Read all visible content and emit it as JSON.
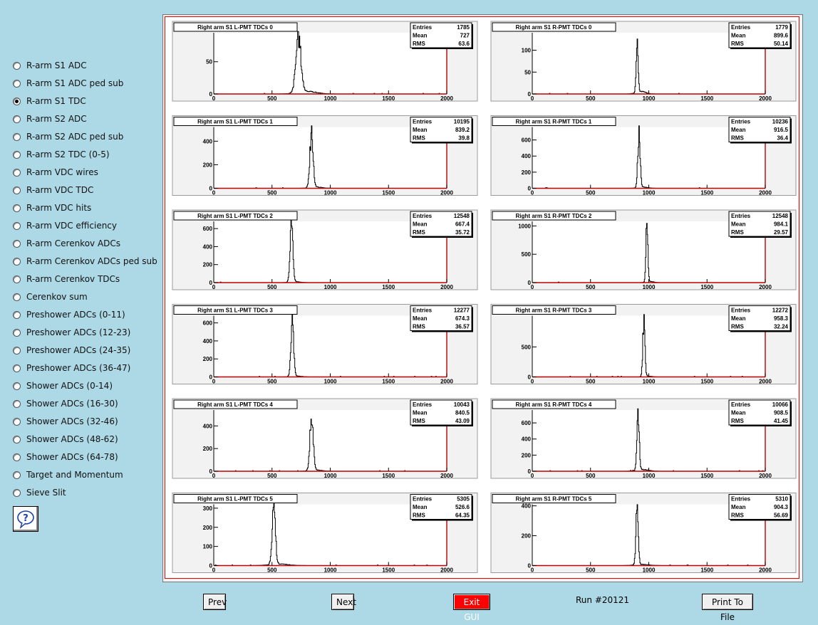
{
  "menu": {
    "selected": 2,
    "items": [
      "R-arm S1 ADC",
      "R-arm S1 ADC ped sub",
      "R-arm S1 TDC",
      "R-arm S2 ADC",
      "R-arm S2 ADC ped sub",
      "R-arm S2 TDC (0-5)",
      "R-arm VDC wires",
      "R-arm VDC TDC",
      "R-arm VDC hits",
      "R-arm VDC efficiency",
      "R-arm Cerenkov ADCs",
      "R-arm Cerenkov ADCs ped sub",
      "R-arm Cerenkov TDCs",
      "Cerenkov sum",
      "Preshower ADCs (0-11)",
      "Preshower ADCs (12-23)",
      "Preshower ADCs (24-35)",
      "Preshower ADCs (36-47)",
      "Shower ADCs (0-14)",
      "Shower ADCs (16-30)",
      "Shower ADCs (32-46)",
      "Shower ADCs (48-62)",
      "Shower ADCs (64-78)",
      "Target and Momentum",
      "Sieve Slit"
    ]
  },
  "help_icon": "question-mark-icon",
  "buttons": {
    "prev": "Prev",
    "next": "Next",
    "exit": "Exit GUI",
    "print": "Print To File"
  },
  "colors": {
    "background": "#add8e6",
    "frame_border": "#e00000",
    "exit_button": "#ff0000",
    "axis_red": "#c00000"
  },
  "run_label": "Run #20121",
  "chart_data": [
    {
      "type": "histogram",
      "title": "Right arm S1 L-PMT TDCs 0",
      "stats": {
        "Entries": "1785",
        "Mean": "727",
        "RMS": "63.6"
      },
      "xlim": [
        0,
        2000
      ],
      "ylim": [
        0,
        95
      ],
      "x_ticks": [
        0,
        500,
        1000,
        1500,
        2000
      ],
      "y_ticks": [
        0,
        50
      ],
      "peak": {
        "x": 727,
        "width": 22,
        "height": 86
      },
      "tail": {
        "x": 800,
        "width": 80,
        "height": 4
      }
    },
    {
      "type": "histogram",
      "title": "Right arm S1 R-PMT TDCs 0",
      "stats": {
        "Entries": "1779",
        "Mean": "899.6",
        "RMS": "50.14"
      },
      "xlim": [
        0,
        2000
      ],
      "ylim": [
        0,
        140
      ],
      "x_ticks": [
        0,
        500,
        1000,
        1500,
        2000
      ],
      "y_ticks": [
        0,
        50,
        100
      ],
      "peak": {
        "x": 900,
        "width": 8,
        "height": 120
      },
      "tail": {
        "x": 930,
        "width": 40,
        "height": 6
      }
    },
    {
      "type": "histogram",
      "title": "Right arm S1 L-PMT TDCs 1",
      "stats": {
        "Entries": "10195",
        "Mean": "839.2",
        "RMS": "39.8"
      },
      "xlim": [
        0,
        2000
      ],
      "ylim": [
        0,
        520
      ],
      "x_ticks": [
        0,
        500,
        1000,
        1500,
        2000
      ],
      "y_ticks": [
        0,
        200,
        400
      ],
      "peak": {
        "x": 839,
        "width": 14,
        "height": 460
      },
      "tail": {
        "x": 880,
        "width": 50,
        "height": 10
      }
    },
    {
      "type": "histogram",
      "title": "Right arm S1 R-PMT TDCs 1",
      "stats": {
        "Entries": "10236",
        "Mean": "916.5",
        "RMS": "36.4"
      },
      "xlim": [
        0,
        2000
      ],
      "ylim": [
        0,
        760
      ],
      "x_ticks": [
        0,
        500,
        1000,
        1500,
        2000
      ],
      "y_ticks": [
        0,
        200,
        400,
        600
      ],
      "peak": {
        "x": 916,
        "width": 10,
        "height": 680
      },
      "tail": {
        "x": 950,
        "width": 40,
        "height": 15
      }
    },
    {
      "type": "histogram",
      "title": "Right arm S1 L-PMT TDCs 2",
      "stats": {
        "Entries": "12548",
        "Mean": "667.4",
        "RMS": "35.72"
      },
      "xlim": [
        0,
        2000
      ],
      "ylim": [
        0,
        680
      ],
      "x_ticks": [
        0,
        500,
        1000,
        1500,
        2000
      ],
      "y_ticks": [
        0,
        200,
        400,
        600
      ],
      "peak": {
        "x": 667,
        "width": 12,
        "height": 640
      },
      "tail": {
        "x": 700,
        "width": 40,
        "height": 10
      }
    },
    {
      "type": "histogram",
      "title": "Right arm S1 R-PMT TDCs 2",
      "stats": {
        "Entries": "12548",
        "Mean": "984.1",
        "RMS": "29.57"
      },
      "xlim": [
        0,
        2000
      ],
      "ylim": [
        0,
        1080
      ],
      "x_ticks": [
        0,
        500,
        1000,
        1500,
        2000
      ],
      "y_ticks": [
        0,
        500,
        1000
      ],
      "peak": {
        "x": 984,
        "width": 8,
        "height": 1000
      },
      "tail": {
        "x": 1010,
        "width": 30,
        "height": 20
      }
    },
    {
      "type": "histogram",
      "title": "Right arm S1 L-PMT TDCs 3",
      "stats": {
        "Entries": "12277",
        "Mean": "674.3",
        "RMS": "36.57"
      },
      "xlim": [
        0,
        2000
      ],
      "ylim": [
        0,
        680
      ],
      "x_ticks": [
        0,
        500,
        1000,
        1500,
        2000
      ],
      "y_ticks": [
        0,
        200,
        400,
        600
      ],
      "peak": {
        "x": 674,
        "width": 12,
        "height": 630
      },
      "tail": {
        "x": 710,
        "width": 40,
        "height": 10
      }
    },
    {
      "type": "histogram",
      "title": "Right arm S1 R-PMT TDCs 3",
      "stats": {
        "Entries": "12272",
        "Mean": "958.3",
        "RMS": "32.24"
      },
      "xlim": [
        0,
        2000
      ],
      "ylim": [
        0,
        1020
      ],
      "x_ticks": [
        0,
        500,
        1000,
        1500,
        2000
      ],
      "y_ticks": [
        0,
        500
      ],
      "peak": {
        "x": 958,
        "width": 9,
        "height": 920
      },
      "tail": {
        "x": 990,
        "width": 30,
        "height": 15
      }
    },
    {
      "type": "histogram",
      "title": "Right arm S1 L-PMT TDCs 4",
      "stats": {
        "Entries": "10043",
        "Mean": "840.5",
        "RMS": "43.09"
      },
      "xlim": [
        0,
        2000
      ],
      "ylim": [
        0,
        540
      ],
      "x_ticks": [
        0,
        500,
        1000,
        1500,
        2000
      ],
      "y_ticks": [
        0,
        200,
        400
      ],
      "peak": {
        "x": 840,
        "width": 14,
        "height": 500
      },
      "tail": {
        "x": 880,
        "width": 50,
        "height": 10
      }
    },
    {
      "type": "histogram",
      "title": "Right arm S1 R-PMT TDCs 4",
      "stats": {
        "Entries": "10066",
        "Mean": "908.5",
        "RMS": "41.45"
      },
      "xlim": [
        0,
        2000
      ],
      "ylim": [
        0,
        760
      ],
      "x_ticks": [
        0,
        500,
        1000,
        1500,
        2000
      ],
      "y_ticks": [
        0,
        200,
        400,
        600
      ],
      "peak": {
        "x": 908,
        "width": 10,
        "height": 720
      },
      "tail": {
        "x": 950,
        "width": 50,
        "height": 20
      }
    },
    {
      "type": "histogram",
      "title": "Right arm S1 L-PMT TDCs 5",
      "stats": {
        "Entries": "5305",
        "Mean": "526.6",
        "RMS": "64.35"
      },
      "xlim": [
        0,
        2000
      ],
      "ylim": [
        0,
        320
      ],
      "x_ticks": [
        0,
        500,
        1000,
        1500,
        2000
      ],
      "y_ticks": [
        0,
        100,
        200,
        300
      ],
      "peak": {
        "x": 515,
        "width": 14,
        "height": 300
      },
      "tail": {
        "x": 560,
        "width": 80,
        "height": 8
      }
    },
    {
      "type": "histogram",
      "title": "Right arm S1 R-PMT TDCs 5",
      "stats": {
        "Entries": "5310",
        "Mean": "904.3",
        "RMS": "56.69"
      },
      "xlim": [
        0,
        2000
      ],
      "ylim": [
        0,
        410
      ],
      "x_ticks": [
        0,
        500,
        1000,
        1500,
        2000
      ],
      "y_ticks": [
        0,
        200,
        400
      ],
      "peak": {
        "x": 900,
        "width": 10,
        "height": 380
      },
      "tail": {
        "x": 940,
        "width": 60,
        "height": 8
      }
    }
  ]
}
